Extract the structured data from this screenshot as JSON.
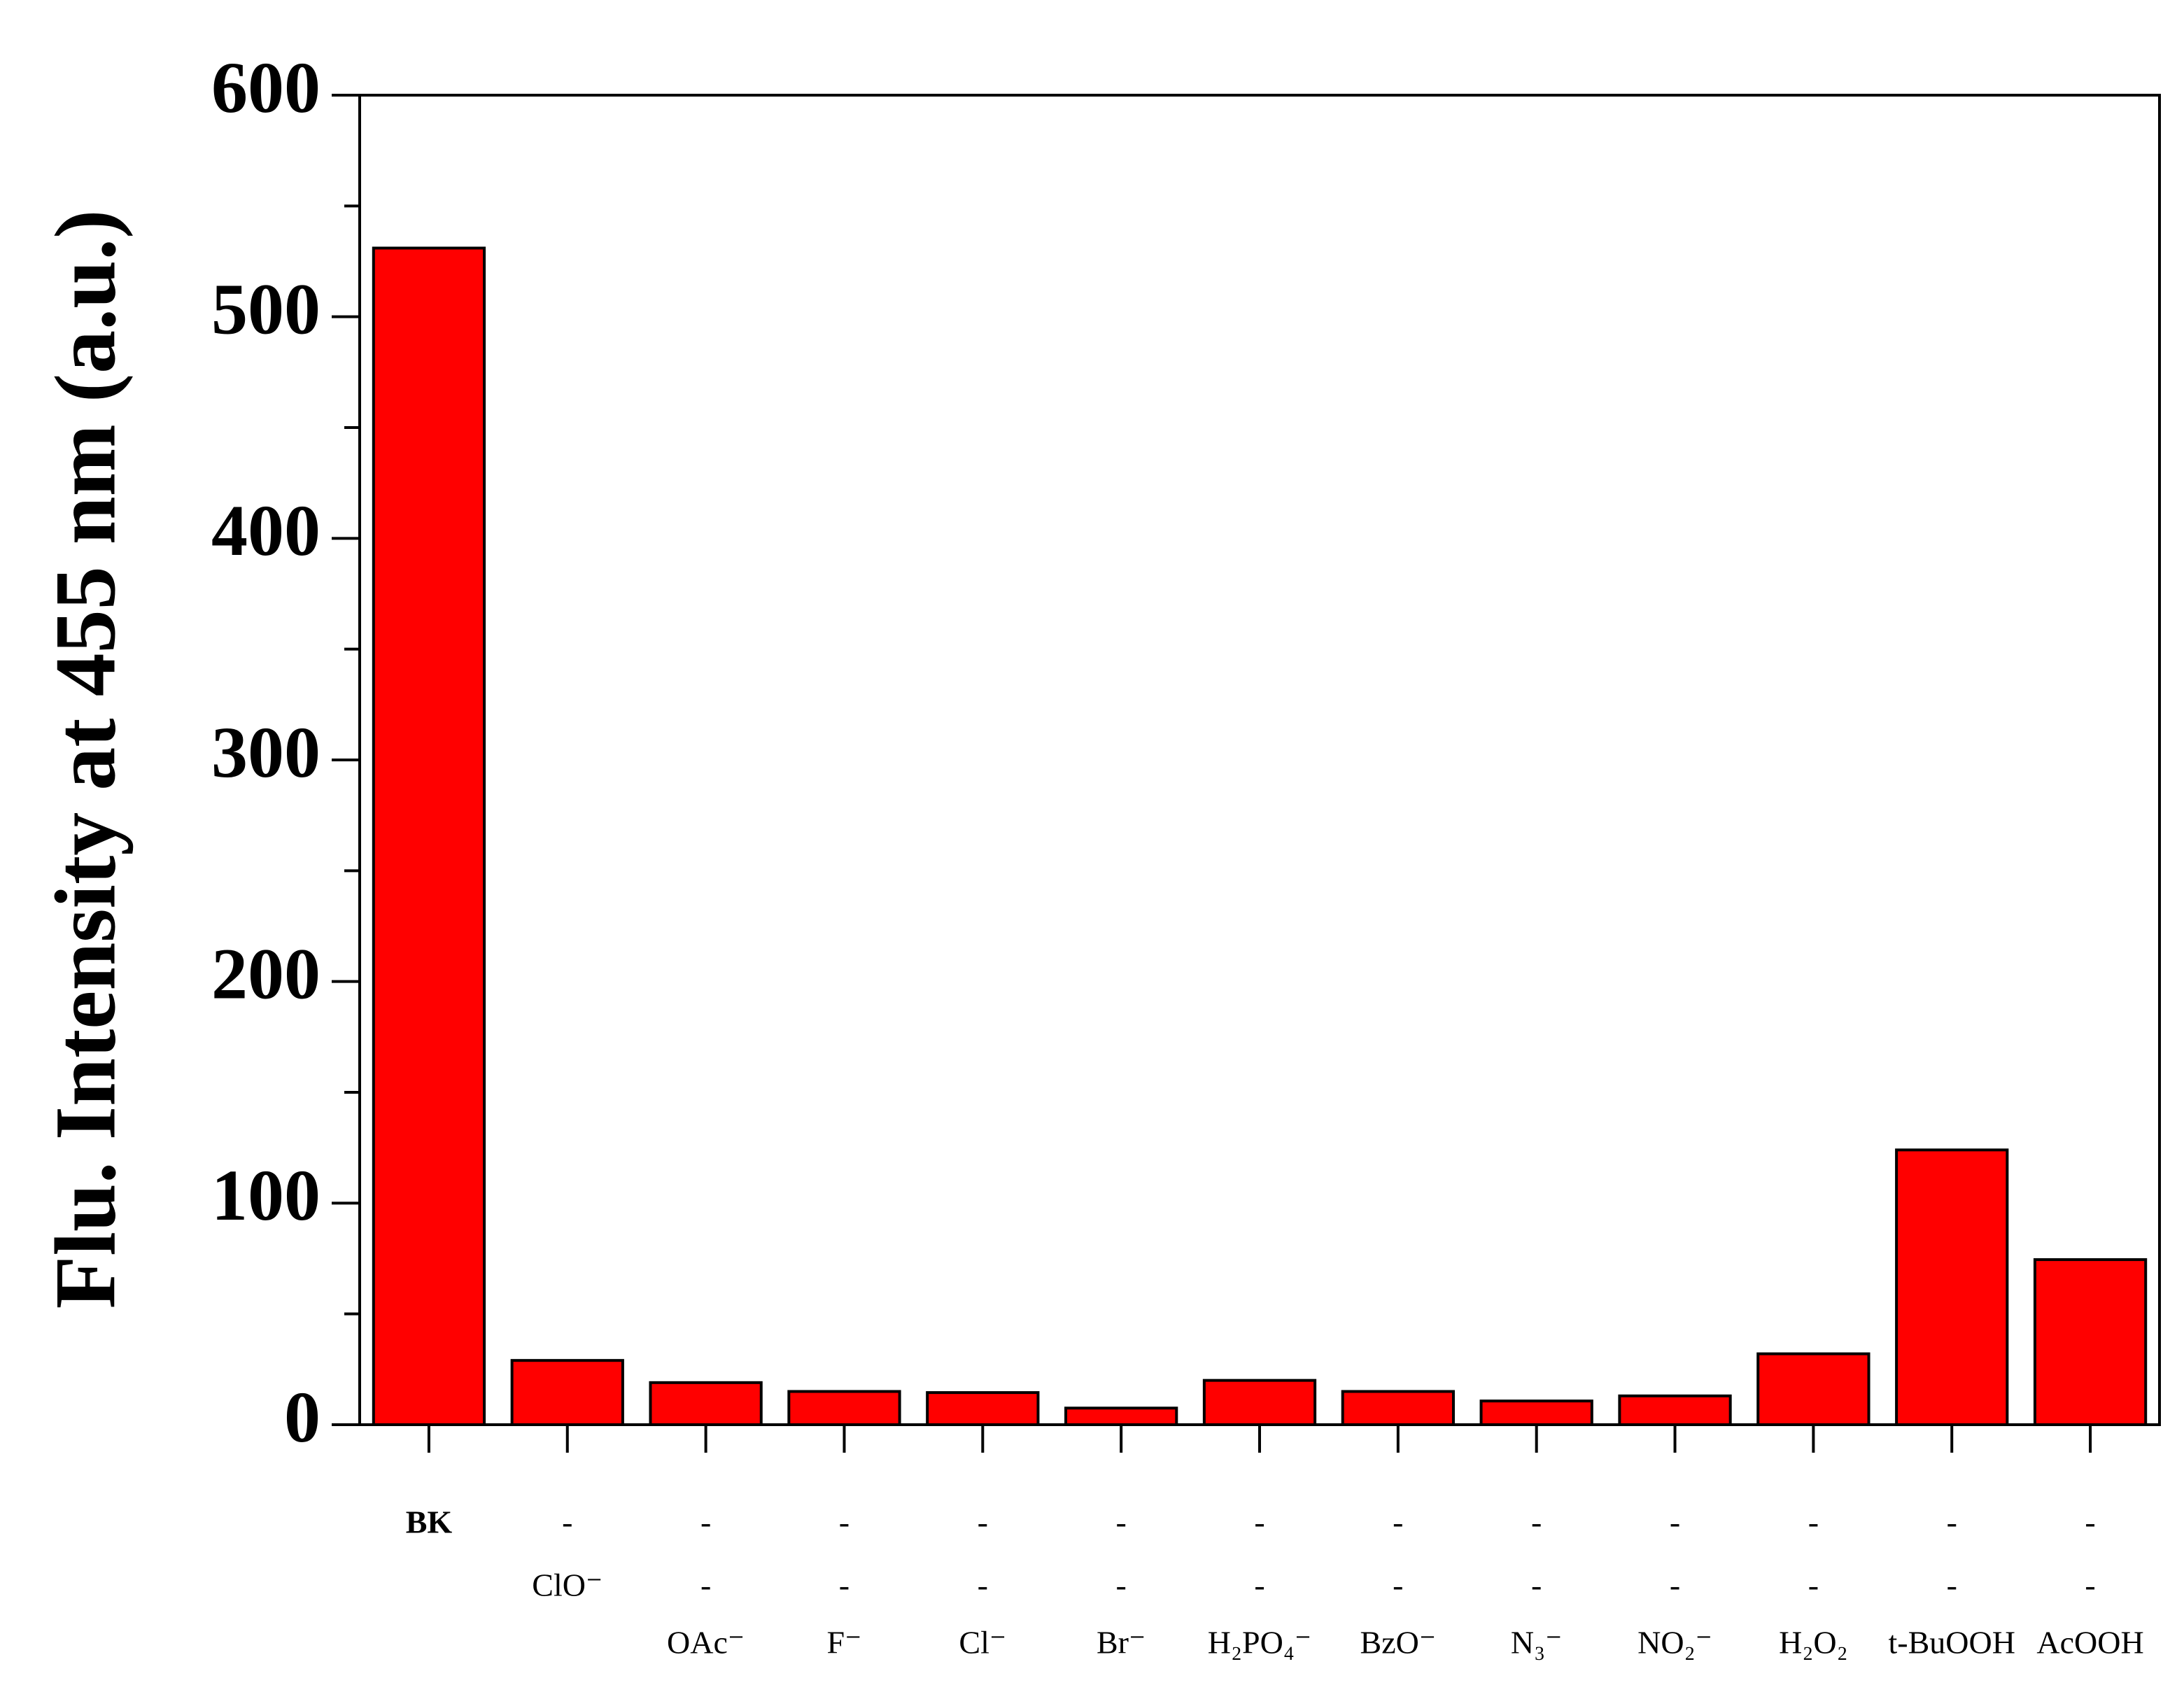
{
  "chart_data": {
    "type": "bar",
    "y_label": "Flu. Intensity at 455 nm (a.u.)",
    "label_rows": [
      [
        "BK",
        "-",
        "-",
        "-",
        "-",
        "-",
        "-",
        "-",
        "-",
        "-",
        "-",
        "-",
        "-"
      ],
      [
        null,
        "ClO⁻",
        "-",
        "-",
        "-",
        "-",
        "-",
        "-",
        "-",
        "-",
        "-",
        "-",
        "-"
      ],
      [
        null,
        null,
        "OAc⁻",
        "F⁻",
        "Cl⁻",
        "Br⁻",
        "H₂PO₄⁻",
        "BzO⁻",
        "N₃⁻",
        "NO₂⁻",
        "H₂O₂",
        "t-BuOOH",
        "AcOOH"
      ]
    ],
    "values": [
      531,
      29,
      19,
      15,
      14.5,
      7.5,
      20,
      15,
      10.7,
      13,
      32,
      124,
      74.5
    ],
    "color": "#ff0000",
    "ylim": [
      0,
      600
    ],
    "yticks": [
      0,
      100,
      200,
      300,
      400,
      500,
      600
    ],
    "yminorticks": [
      50,
      150,
      250,
      350,
      450,
      550
    ],
    "grid": false
  }
}
